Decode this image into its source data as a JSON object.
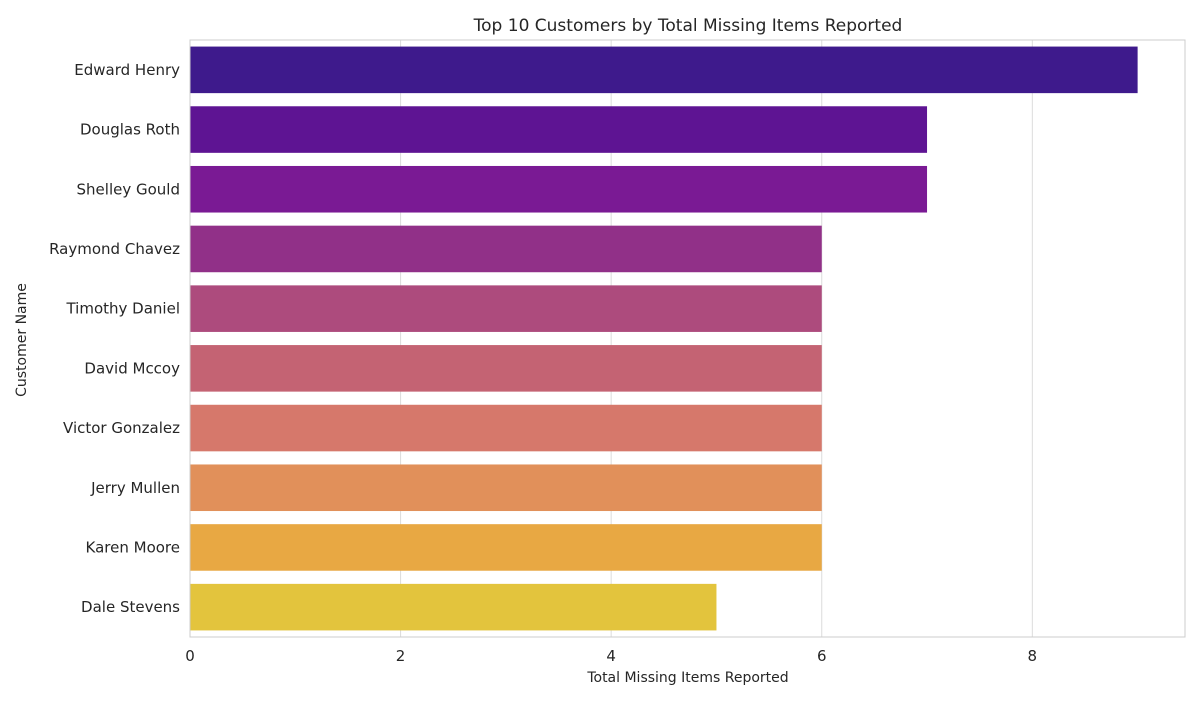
{
  "chart_data": {
    "type": "bar",
    "orientation": "horizontal",
    "title": "Top 10 Customers by Total Missing Items Reported",
    "xlabel": "Total Missing Items Reported",
    "ylabel": "Customer Name",
    "xlim": [
      0,
      9.45
    ],
    "xticks": [
      "0",
      "2",
      "4",
      "6",
      "8"
    ],
    "grid": true,
    "categories": [
      "Edward Henry",
      "Douglas Roth",
      "Shelley Gould",
      "Raymond Chavez",
      "Timothy Daniel",
      "David Mccoy",
      "Victor Gonzalez",
      "Jerry Mullen",
      "Karen Moore",
      "Dale Stevens"
    ],
    "values": [
      9,
      7,
      7,
      6,
      6,
      6,
      6,
      6,
      6,
      5
    ],
    "colors": [
      "#3e1a8c",
      "#5e1493",
      "#7a1a94",
      "#913088",
      "#ad4b7d",
      "#c46373",
      "#d6786b",
      "#e1905a",
      "#e8a843",
      "#e3c43d"
    ]
  }
}
